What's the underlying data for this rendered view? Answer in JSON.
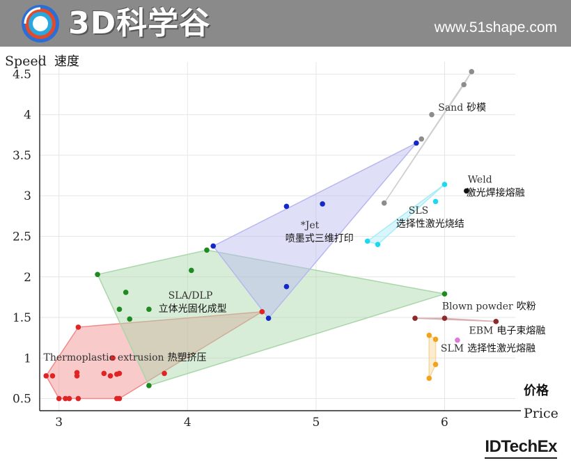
{
  "header": {
    "brand": "3D科学谷",
    "url": "www.51shape.com"
  },
  "footer_logo": "IDTechEx",
  "colors": {
    "banner": "#8a8a8a",
    "grid": "#e6e6e6"
  },
  "chart_data": {
    "type": "scatter",
    "title": "",
    "xlabel": "Price",
    "xlabel_cn": "价格",
    "ylabel": "Speed",
    "ylabel_cn": "速度",
    "xlim": [
      2.85,
      6.55
    ],
    "ylim": [
      0.35,
      4.65
    ],
    "xticks": [
      3,
      4,
      5,
      6
    ],
    "yticks": [
      0.5,
      1,
      1.5,
      2,
      2.5,
      3,
      3.5,
      4,
      4.5
    ],
    "grid": true,
    "series": [
      {
        "name": "Thermoplastic extrusion",
        "label_cn": "热塑挤压",
        "color": "#e02424",
        "hull_color": "#f08a8a",
        "points": [
          [
            2.9,
            0.78
          ],
          [
            2.95,
            0.78
          ],
          [
            3.0,
            0.5
          ],
          [
            3.05,
            0.5
          ],
          [
            3.08,
            0.5
          ],
          [
            3.15,
            0.5
          ],
          [
            3.14,
            0.78
          ],
          [
            3.14,
            0.82
          ],
          [
            3.15,
            1.38
          ],
          [
            3.35,
            0.81
          ],
          [
            3.4,
            0.78
          ],
          [
            3.42,
            1.0
          ],
          [
            3.45,
            0.8
          ],
          [
            3.47,
            0.81
          ],
          [
            3.45,
            0.5
          ],
          [
            3.47,
            0.5
          ],
          [
            3.82,
            0.81
          ],
          [
            4.58,
            1.57
          ]
        ],
        "hull": [
          [
            2.9,
            0.78
          ],
          [
            3.0,
            0.5
          ],
          [
            3.47,
            0.5
          ],
          [
            4.58,
            1.57
          ],
          [
            3.15,
            1.38
          ]
        ]
      },
      {
        "name": "SLA/DLP",
        "label_cn": "立体光固化成型",
        "color": "#1f8a1f",
        "hull_color": "#a9d6a9",
        "points": [
          [
            3.3,
            2.03
          ],
          [
            3.47,
            1.6
          ],
          [
            3.52,
            1.81
          ],
          [
            3.55,
            1.48
          ],
          [
            3.7,
            1.6
          ],
          [
            3.7,
            0.66
          ],
          [
            4.03,
            2.08
          ],
          [
            4.15,
            2.33
          ],
          [
            6.0,
            1.79
          ]
        ],
        "hull": [
          [
            3.3,
            2.03
          ],
          [
            4.15,
            2.33
          ],
          [
            6.0,
            1.79
          ],
          [
            3.7,
            0.66
          ]
        ]
      },
      {
        "name": "*Jet",
        "label_cn": "喷墨式三维打印",
        "color": "#1428c8",
        "hull_color": "#b7b7ef",
        "points": [
          [
            4.2,
            2.38
          ],
          [
            4.63,
            1.49
          ],
          [
            4.77,
            1.88
          ],
          [
            4.77,
            2.87
          ],
          [
            5.05,
            2.9
          ],
          [
            5.78,
            3.65
          ]
        ],
        "hull": [
          [
            4.2,
            2.38
          ],
          [
            5.78,
            3.65
          ],
          [
            4.63,
            1.49
          ]
        ]
      },
      {
        "name": "Sand",
        "label_cn": "砂模",
        "color": "#8c8c8c",
        "hull_color": "#cfcfcf",
        "points": [
          [
            5.53,
            2.91
          ],
          [
            5.82,
            3.7
          ],
          [
            5.9,
            4.0
          ],
          [
            6.15,
            4.37
          ],
          [
            6.21,
            4.53
          ]
        ],
        "hull": [
          [
            5.53,
            2.91
          ],
          [
            6.21,
            4.53
          ],
          [
            6.15,
            4.37
          ]
        ]
      },
      {
        "name": "SLS",
        "label_cn": "选择性激光烧结",
        "color": "#1fd8f0",
        "hull_color": "#a8ecf6",
        "points": [
          [
            5.4,
            2.44
          ],
          [
            5.48,
            2.4
          ],
          [
            5.93,
            2.93
          ],
          [
            6.0,
            3.14
          ]
        ],
        "hull": [
          [
            5.4,
            2.44
          ],
          [
            6.0,
            3.14
          ],
          [
            5.48,
            2.4
          ]
        ]
      },
      {
        "name": "Weld",
        "label_cn": "激光焊接熔融",
        "color": "#111111",
        "points": [
          [
            6.17,
            3.06
          ]
        ]
      },
      {
        "name": "Blown powder",
        "label_cn": "吹粉",
        "color": "#8b2a2a",
        "hull_color": "#d9b0b0",
        "points": [
          [
            5.77,
            1.49
          ],
          [
            6.0,
            1.49
          ],
          [
            6.4,
            1.45
          ]
        ],
        "hull": [
          [
            5.77,
            1.49
          ],
          [
            6.0,
            1.49
          ],
          [
            6.4,
            1.45
          ]
        ]
      },
      {
        "name": "EBM",
        "label_cn": "电子束熔融",
        "color": "#e07ad8",
        "points": [
          [
            6.1,
            1.22
          ]
        ]
      },
      {
        "name": "SLM",
        "label_cn": "选择性激光熔融",
        "color": "#f2a21c",
        "hull_color": "#f7d79a",
        "points": [
          [
            5.88,
            1.28
          ],
          [
            5.93,
            1.23
          ],
          [
            5.93,
            0.92
          ],
          [
            5.88,
            0.75
          ]
        ],
        "hull": [
          [
            5.88,
            1.28
          ],
          [
            5.93,
            1.23
          ],
          [
            5.93,
            0.92
          ],
          [
            5.88,
            0.75
          ]
        ]
      }
    ],
    "annotations": [
      {
        "series": "Thermoplastic extrusion",
        "text": "Thermoplastic extrusion",
        "text_cn": "热塑挤压",
        "at": [
          2.88,
          0.97
        ]
      },
      {
        "series": "SLA/DLP",
        "text": "SLA/DLP",
        "text_cn": "立体光固化成型",
        "at": [
          3.85,
          1.73
        ]
      },
      {
        "series": "*Jet",
        "text": "*Jet",
        "text_cn": "喷墨式三维打印",
        "at": [
          4.88,
          2.6
        ]
      },
      {
        "series": "Sand",
        "text": "Sand",
        "text_cn": "砂模",
        "at": [
          5.95,
          4.05
        ]
      },
      {
        "series": "SLS",
        "text": "SLS",
        "text_cn": "选择性激光烧结",
        "at": [
          5.72,
          2.78
        ]
      },
      {
        "series": "Weld",
        "text": "Weld",
        "text_cn": "激光焊接熔融",
        "at": [
          6.18,
          3.16
        ]
      },
      {
        "series": "Blown powder",
        "text": "Blown powder",
        "text_cn": "吹粉",
        "at": [
          5.98,
          1.6
        ]
      },
      {
        "series": "EBM",
        "text": "EBM",
        "text_cn": "电子束熔融",
        "at": [
          6.19,
          1.3
        ]
      },
      {
        "series": "SLM",
        "text": "SLM",
        "text_cn": "选择性激光熔融",
        "at": [
          5.97,
          1.08
        ]
      }
    ]
  }
}
